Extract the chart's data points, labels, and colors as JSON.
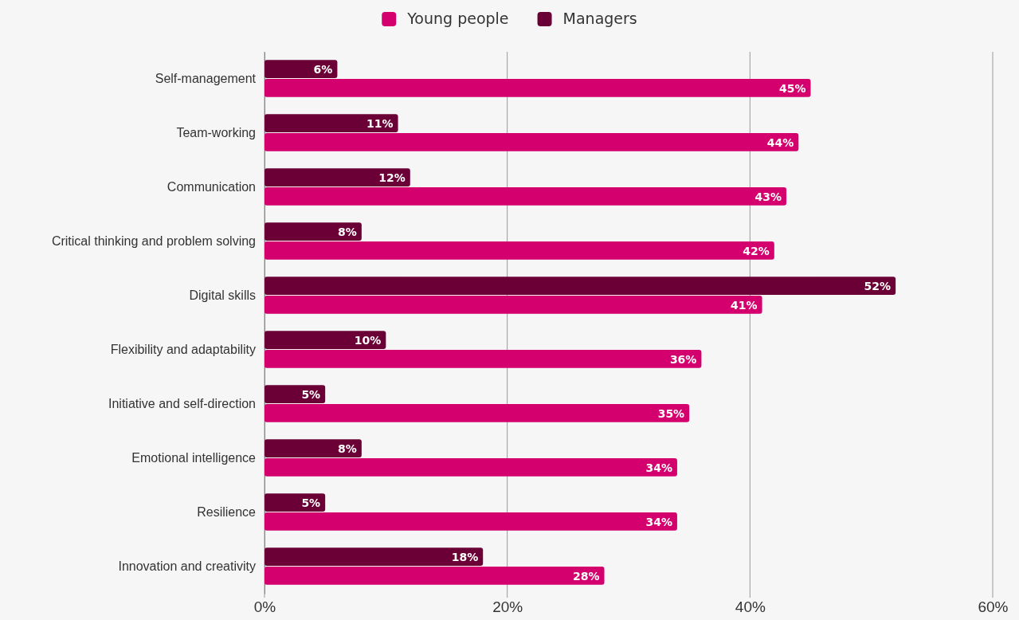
{
  "chart_data": {
    "type": "bar",
    "orientation": "horizontal",
    "categories": [
      "Self-management",
      "Team-working",
      "Communication",
      "Critical thinking and problem solving",
      "Digital skills",
      "Flexibility and adaptability",
      "Initiative and self-direction",
      "Emotional intelligence",
      "Resilience",
      "Innovation and creativity"
    ],
    "series": [
      {
        "name": "Young people",
        "color": "#d4006e",
        "values": [
          45,
          44,
          43,
          42,
          41,
          36,
          35,
          34,
          34,
          28
        ],
        "value_labels": [
          "45%",
          "44%",
          "43%",
          "42%",
          "41%",
          "36%",
          "35%",
          "34%",
          "34%",
          "28%"
        ]
      },
      {
        "name": "Managers",
        "color": "#6a0035",
        "values": [
          6,
          11,
          12,
          8,
          52,
          10,
          5,
          8,
          5,
          18
        ],
        "value_labels": [
          "6%",
          "11%",
          "12%",
          "8%",
          "52%",
          "10%",
          "5%",
          "8%",
          "5%",
          "18%"
        ]
      }
    ],
    "xlim": [
      0,
      60
    ],
    "xticks": [
      {
        "value": 0,
        "label": "0%"
      },
      {
        "value": 20,
        "label": "20%"
      },
      {
        "value": 40,
        "label": "40%"
      },
      {
        "value": 60,
        "label": "60%"
      }
    ],
    "grid": "x",
    "legend": "top"
  }
}
